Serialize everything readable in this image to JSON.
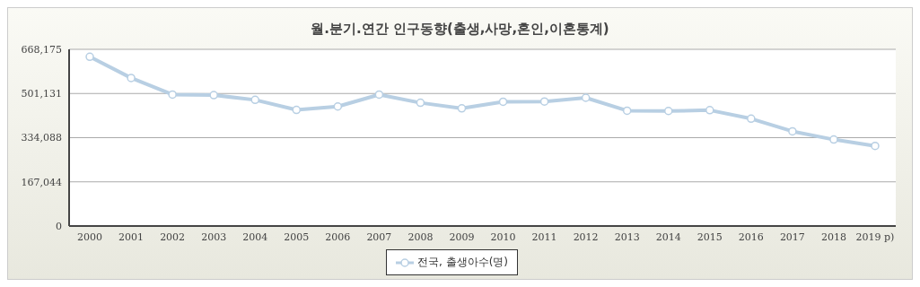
{
  "chart_data": {
    "type": "line",
    "title": "월.분기.연간 인구동향(출생,사망,혼인,이혼통계)",
    "categories": [
      "2000",
      "2001",
      "2002",
      "2003",
      "2004",
      "2005",
      "2006",
      "2007",
      "2008",
      "2009",
      "2010",
      "2011",
      "2012",
      "2013",
      "2014",
      "2015",
      "2016",
      "2017",
      "2018",
      "2019 p)"
    ],
    "series": [
      {
        "name": "전국, 출생아수(명)",
        "color": "#b8cfe3",
        "values": [
          640000,
          560000,
          497000,
          495000,
          477000,
          439000,
          452000,
          497000,
          466000,
          445000,
          470000,
          471000,
          485000,
          436000,
          435000,
          438000,
          406000,
          358000,
          327000,
          303000
        ]
      }
    ],
    "ylim": [
      0,
      668175
    ],
    "yticks": [
      0,
      {
        "value": 167044,
        "label": "167,044"
      },
      {
        "value": 334088,
        "label": "334,088"
      },
      {
        "value": 501131,
        "label": "501,131"
      },
      {
        "value": 668175,
        "label": "668,175"
      }
    ],
    "grid": "y",
    "legend": "bottom",
    "marker": "circle",
    "line_style": "solid"
  }
}
